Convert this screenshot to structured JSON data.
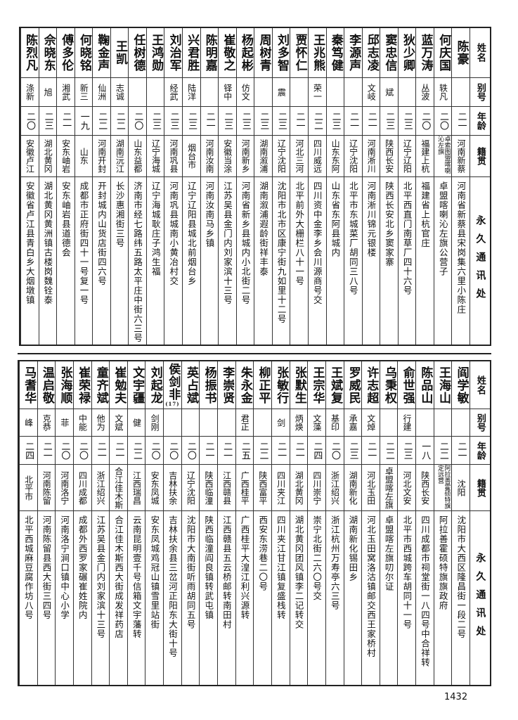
{
  "header": {
    "name": "姓名",
    "alias": "别号",
    "age": "年龄",
    "origin": "籍贯",
    "address": "永久通讯处"
  },
  "tables": [
    {
      "rows": [
        {
          "name": "陈豪",
          "alias": "",
          "age": "二一",
          "origin": "河南新蔡",
          "address": "河南省新蔡县宋岗集六里小陈庄"
        },
        {
          "name": "何庆国",
          "alias": "轶凡",
          "age": "二〇",
          "origin": "卓索图盟喀喇沁左旗",
          "address": "卓盟喀喇沁左旗公营子"
        },
        {
          "name": "蓝万涛",
          "alias": "丛波",
          "age": "二〇",
          "origin": "福建上杭",
          "address": "福建省上杭官庄"
        },
        {
          "name": "狄少卿",
          "alias": "",
          "age": "二三",
          "origin": "辽宁辽阳",
          "address": "北平西直门南草厂四十六号"
        },
        {
          "name": "窦忠信",
          "alias": "斌",
          "age": "二三",
          "origin": "陕西长安",
          "address": "陕西长安北乡窦家寨"
        },
        {
          "name": "邱志凌",
          "alias": "文岐",
          "age": "二一",
          "origin": "河南淅川",
          "address": "河南淅川锦元银楼"
        },
        {
          "name": "李源声",
          "alias": "",
          "age": "二一",
          "origin": "辽宁沈阳",
          "address": "北平市东城菜厂胡同三八号"
        },
        {
          "name": "秦笃健",
          "alias": "",
          "age": "二三",
          "origin": "山东东阿",
          "address": "山东省东阿县城内"
        },
        {
          "name": "王兆熊",
          "alias": "荣一",
          "age": "二二",
          "origin": "四川威远",
          "address": "四川资中金李乡会川源商号交"
        },
        {
          "name": "贾怀仁",
          "alias": "",
          "age": "二一",
          "origin": "河北三河",
          "address": "北平前外大栅栏八十一号"
        },
        {
          "name": "刘多智",
          "alias": "震",
          "age": "二三",
          "origin": "辽宁沈阳",
          "address": "沈阳市北市区康宁街九如里十二号"
        },
        {
          "name": "周树青",
          "alias": "",
          "age": "二三",
          "origin": "湖南溆浦",
          "address": "湖南溆浦遐龄街祥丰泰"
        },
        {
          "name": "杨起彬",
          "alias": "仿文",
          "age": "二三",
          "origin": "河南新乡",
          "address": "河南省新乡县城内小北街二号"
        },
        {
          "name": "崔敬之",
          "alias": "铎中",
          "age": "二三",
          "origin": "安徽当涂",
          "address": "江苏吴县金门内刘家滨十三号"
        },
        {
          "name": "陈明嘉",
          "alias": "",
          "age": "二一",
          "origin": "河南汝南",
          "address": "河南汝南马乡镇"
        },
        {
          "name": "兴君胜",
          "alias": "陆洋",
          "age": "二三",
          "origin": "烟台市",
          "address": "辽宁辽阳县城北前烟台乡"
        },
        {
          "name": "刘治军",
          "alias": "经武",
          "age": "二三",
          "origin": "河南巩县",
          "address": "河南巩县城南小黄冶村交"
        },
        {
          "name": "王鸿勋",
          "alias": "",
          "age": "二三",
          "origin": "辽宁海城",
          "address": "辽宁海城耿庄子鸿生福"
        },
        {
          "name": "任树德",
          "alias": "",
          "age": "二〇",
          "origin": "山东益都",
          "address": "济南市经七路纬五路太平庄中街六三号"
        },
        {
          "name": "王凯",
          "alias": "志诚",
          "age": "二二",
          "origin": "湖南沅江",
          "address": "长沙惠湘街三号"
        },
        {
          "name": "鞠金声",
          "alias": "仙洲",
          "age": "二二",
          "origin": "河南开封",
          "address": "开封城内山货店街四六号"
        },
        {
          "name": "何晓铭",
          "alias": "新三",
          "age": "一九",
          "origin": "山东",
          "address": "成都市正府街四十一号复一号"
        },
        {
          "name": "傅多伦",
          "alias": "湘武",
          "age": "二一",
          "origin": "安东岫岩",
          "address": "安东岫岩县道德会"
        },
        {
          "name": "佘晓东",
          "alias": "旭",
          "age": "二三",
          "origin": "湖北黄冈",
          "address": "湖北黄冈黄洲镇古楼岗魏铨泰"
        },
        {
          "name": "陈烈凡",
          "alias": "涤新",
          "age": "二〇",
          "origin": "安徽卢江",
          "address": "安徽省卢江县青白乡大烟墩镇"
        }
      ]
    },
    {
      "rows": [
        {
          "name": "阎学敏",
          "alias": "",
          "age": "二一",
          "origin": "沈阳",
          "address": "沈阳市大西区隆昌街一段二号"
        },
        {
          "name": "王海山",
          "alias": "",
          "age": "二二",
          "origin": "阿拉善霍硕特旗定远营",
          "address": "阿拉善霍硕特旗旗政府"
        },
        {
          "name": "陈品山",
          "alias": "",
          "age": "一八",
          "origin": "陕西长安",
          "address": "四川成都市祠堂街一八四号中合祥转"
        },
        {
          "name": "俞世强",
          "alias": "行建",
          "age": "二三",
          "origin": "河北文安",
          "address": "北平市西城跨车胡同十一号"
        },
        {
          "name": "乌秉权",
          "alias": "",
          "age": "二二",
          "origin": "卓盟喀左旗",
          "address": "卓盟喀左旗叨尔证"
        },
        {
          "name": "许志超",
          "alias": "文焯",
          "age": "二一",
          "origin": "河北玉田",
          "address": "河北玉田窝洛沽镇邮交西王家桥村"
        },
        {
          "name": "罗威民",
          "alias": "承嘉",
          "age": "二三",
          "origin": "湖南新化",
          "address": "湖南新化锡田乡"
        },
        {
          "name": "王斌复",
          "alias": "基印",
          "age": "二〇",
          "origin": "浙江绍兴",
          "address": "浙江杭州万寿亭六三号"
        },
        {
          "name": "王宗华",
          "alias": "文藻",
          "age": "二四",
          "origin": "四川崇宁",
          "address": "崇宁北街二六〇号交"
        },
        {
          "name": "张默生",
          "alias": "炳焕",
          "age": "二一",
          "origin": "湖北黄冈",
          "address": "湖北黄冈团风镇李二记转交"
        },
        {
          "name": "张敏行",
          "alias": "剑",
          "age": "二一",
          "origin": "四川夹江",
          "address": "四川夹江甘江镇复盛栈转"
        },
        {
          "name": "柳正平",
          "alias": "",
          "age": "二二",
          "origin": "陕西富平",
          "address": "西安东涝巷二〇号"
        },
        {
          "name": "朱永金",
          "alias": "君正",
          "age": "二五",
          "origin": "广西桂平",
          "address": "广西桂平大湟江利兴源转"
        },
        {
          "name": "李崇贤",
          "alias": "",
          "age": "二一",
          "origin": "江西赣县",
          "address": "江西赣县五云桥邮转南田村"
        },
        {
          "name": "杨振书",
          "alias": "",
          "age": "二一",
          "origin": "陕西临潼",
          "address": "陕西临潼阎良镇转武屯镇"
        },
        {
          "name": "英占斌",
          "alias": "",
          "age": "二〇",
          "origin": "辽宁沈阳",
          "address": "沈阳市大南街听雨胡同五号"
        },
        {
          "name": "侯剑非",
          "name_note": "(17)",
          "alias": "",
          "age": "二〇",
          "origin": "吉林扶余",
          "address": "吉林扶余县三岔河正阳东大街十号"
        },
        {
          "name": "刘起龙",
          "alias": "剑刚",
          "age": "二〇",
          "origin": "安东凤城",
          "address": "安东凤城鸡冠山镇雪里站街"
        },
        {
          "name": "文宇疆",
          "alias": "健",
          "age": "二二",
          "origin": "江西瑞昌",
          "address": "云南昆明壹千号信箱文宇藩转"
        },
        {
          "name": "崔勉夫",
          "alias": "文斌",
          "age": "二一",
          "origin": "合江佳木斯",
          "address": "合江佳木斯西大街成发祥药店"
        },
        {
          "name": "童齐斌",
          "alias": "他为",
          "age": "二一",
          "origin": "浙江绍兴",
          "address": "江苏吴县金门内刘家滨十三号"
        },
        {
          "name": "崔荣禄",
          "alias": "中能",
          "age": "二〇",
          "origin": "四川成都",
          "address": "成都外西罗家碾崔姓院内"
        },
        {
          "name": "张海顺",
          "alias": "菲",
          "age": "二〇",
          "origin": "河南洛宁",
          "address": "河南洛宁涧口镇中心小学"
        },
        {
          "name": "温启敬",
          "alias": "克恭",
          "age": "二一",
          "origin": "河南陈留",
          "address": "河南陈留县西大街三四号"
        },
        {
          "name": "马耆华",
          "alias": "峰",
          "age": "二四",
          "origin": "北平市",
          "address": "北平西城麻豆腐作坊八号"
        }
      ]
    }
  ],
  "page_number": "1432"
}
